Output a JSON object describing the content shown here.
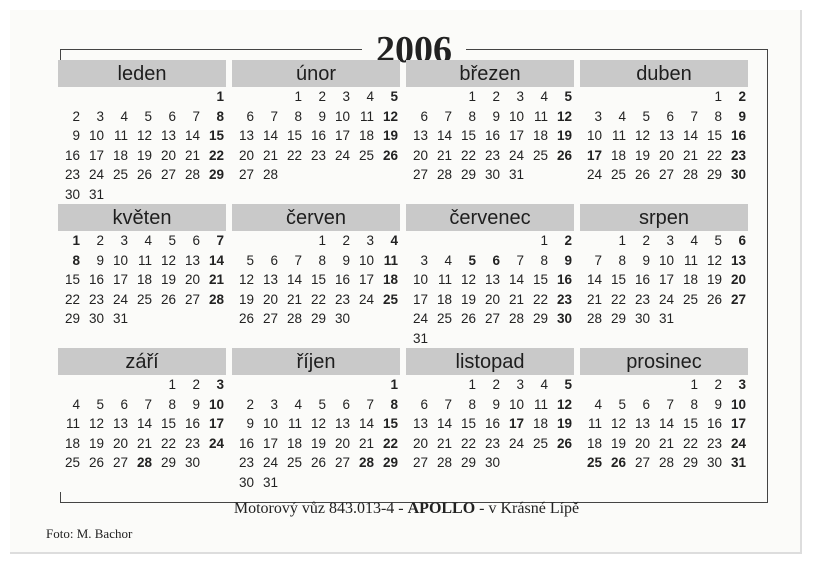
{
  "year": "2006",
  "months": [
    {
      "name": "leden",
      "days": 31,
      "offset": 6,
      "bold": [
        1,
        8,
        15,
        22,
        29
      ]
    },
    {
      "name": "únor",
      "days": 28,
      "offset": 2,
      "bold": [
        5,
        12,
        19,
        26
      ]
    },
    {
      "name": "březen",
      "days": 31,
      "offset": 2,
      "bold": [
        5,
        12,
        19,
        26
      ]
    },
    {
      "name": "duben",
      "days": 30,
      "offset": 5,
      "bold": [
        2,
        9,
        16,
        17,
        23,
        30
      ]
    },
    {
      "name": "květen",
      "days": 31,
      "offset": 0,
      "bold": [
        1,
        7,
        8,
        14,
        21,
        28
      ]
    },
    {
      "name": "červen",
      "days": 30,
      "offset": 3,
      "bold": [
        4,
        11,
        18,
        25
      ]
    },
    {
      "name": "červenec",
      "days": 31,
      "offset": 5,
      "bold": [
        2,
        5,
        6,
        9,
        16,
        23,
        30
      ]
    },
    {
      "name": "srpen",
      "days": 31,
      "offset": 1,
      "bold": [
        6,
        13,
        20,
        27
      ]
    },
    {
      "name": "září",
      "days": 30,
      "offset": 4,
      "bold": [
        3,
        10,
        17,
        24,
        28
      ]
    },
    {
      "name": "říjen",
      "days": 31,
      "offset": 6,
      "bold": [
        1,
        8,
        15,
        22,
        28,
        29
      ]
    },
    {
      "name": "listopad",
      "days": 30,
      "offset": 2,
      "bold": [
        5,
        12,
        17,
        19,
        26
      ]
    },
    {
      "name": "prosinec",
      "days": 31,
      "offset": 4,
      "bold": [
        3,
        10,
        17,
        24,
        25,
        26,
        31
      ]
    }
  ],
  "caption": {
    "pre": "Motorový vůz 843.013-4 - ",
    "bold": "APOLLO",
    "post": " - v Krásné Lípě"
  },
  "photo_credit": "Foto: M. Bachor"
}
